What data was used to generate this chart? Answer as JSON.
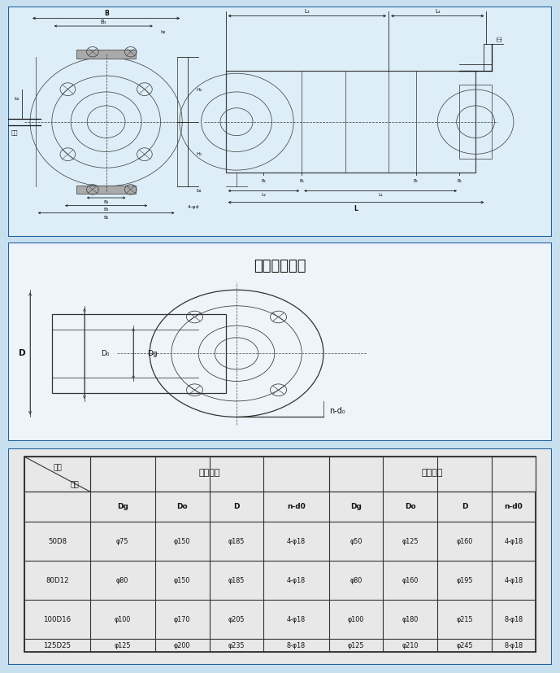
{
  "bg_color": "#c8dff0",
  "border_color": "#2060a0",
  "section1_bg": "#ddeef8",
  "section2_bg": "#eef4fa",
  "section3_bg": "#e8e8e8",
  "title_flanges": "吸入吐出法兰",
  "table_header1": "吸入法兰",
  "table_header2": "吐出法兰",
  "col_type": "型号",
  "col_size": "尺寸",
  "inlet_label": "进水",
  "outlet_label": "出水",
  "rows": [
    [
      "50D8",
      "φ75",
      "φ150",
      "φ185",
      "4-φ18",
      "φ50",
      "φ125",
      "φ160",
      "4-φ18"
    ],
    [
      "80D12",
      "φ80",
      "φ150",
      "φ185",
      "4-φ18",
      "φ80",
      "φ160",
      "φ195",
      "4-φ18"
    ],
    [
      "100D16",
      "φ100",
      "φ170",
      "φ205",
      "4-φ18",
      "φ100",
      "φ180",
      "φ215",
      "8-φ18"
    ],
    [
      "125D25",
      "φ125",
      "φ200",
      "φ235",
      "8-φ18",
      "φ125",
      "φ210",
      "φ245",
      "8-φ18"
    ]
  ]
}
